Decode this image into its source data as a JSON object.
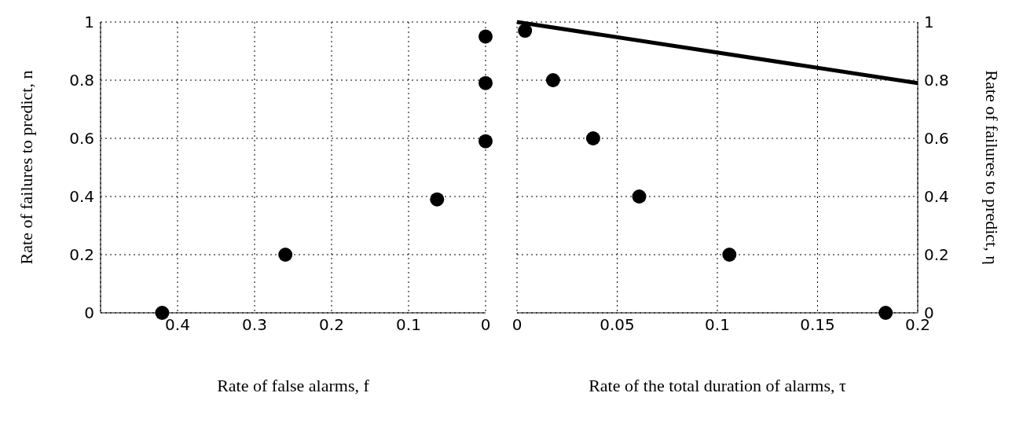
{
  "chart_data": [
    {
      "type": "scatter",
      "xlabel": "Rate of false alarms, f",
      "ylabel": "Rate of  failures to predict, n",
      "x": [
        0.42,
        0.26,
        0.063,
        0,
        0,
        0
      ],
      "values": [
        0,
        0.2,
        0.39,
        0.59,
        0.79,
        0.95
      ],
      "color": "#000000",
      "marker": "circle",
      "xlim": [
        0.5,
        0
      ],
      "xticks": [
        0.4,
        0.3,
        0.2,
        0.1,
        0
      ],
      "ylim": [
        0,
        1
      ],
      "yticks": [
        0,
        0.2,
        0.4,
        0.6,
        0.8,
        1
      ],
      "grid": true
    },
    {
      "type": "scatter",
      "xlabel": "Rate of the total duration of alarms, τ",
      "y2label": "Rate of  failures to predict, η",
      "grid": true,
      "xlim": [
        0,
        0.2
      ],
      "xticks": [
        0,
        0.05,
        0.1,
        0.15,
        0.2
      ],
      "y2lim": [
        0,
        1
      ],
      "y2ticks": [
        0,
        0.2,
        0.4,
        0.6,
        0.8,
        1
      ],
      "series": [
        {
          "axis": "y2",
          "marker": "circle",
          "color": "#000000",
          "x": [
            0.004,
            0.018,
            0.038,
            0.061,
            0.106,
            0.184
          ],
          "values": [
            0.97,
            0.8,
            0.6,
            0.4,
            0.2,
            0
          ]
        },
        {
          "type": "line",
          "axis": "y2",
          "color": "#000000",
          "line_style": "solid",
          "x": [
            0,
            0.2
          ],
          "values": [
            1,
            0.79
          ]
        }
      ]
    }
  ]
}
